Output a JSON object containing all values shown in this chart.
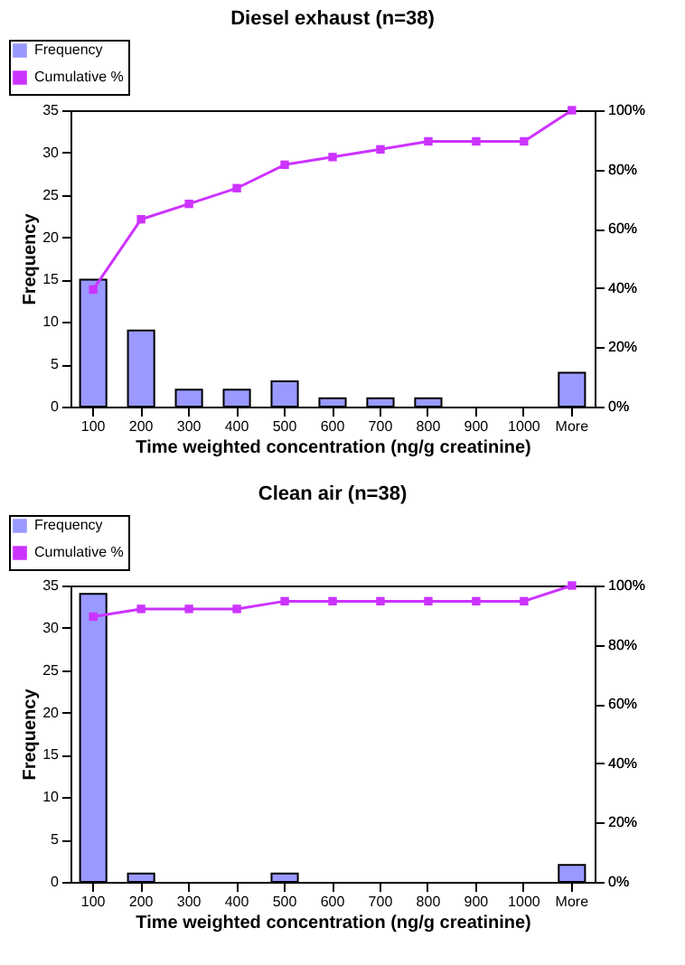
{
  "chart_data": [
    {
      "type": "bar",
      "title": "Diesel exhaust (n=38)",
      "xlabel": "Time weighted concentration (ng/g creatinine)",
      "ylabel": "Frequency",
      "categories": [
        "100",
        "200",
        "300",
        "400",
        "500",
        "600",
        "700",
        "800",
        "900",
        "1000",
        "More"
      ],
      "series": [
        {
          "name": "Frequency",
          "color": "#9999ff",
          "values": [
            15,
            9,
            2,
            2,
            3,
            1,
            1,
            1,
            0,
            0,
            4
          ]
        },
        {
          "name": "Cumulative %",
          "type": "line",
          "axis": "y2",
          "color": "#cc33ff",
          "values": [
            39.5,
            63.2,
            68.4,
            73.7,
            81.6,
            84.2,
            86.8,
            89.5,
            89.5,
            89.5,
            100
          ]
        }
      ],
      "ylim": [
        0,
        35
      ],
      "yticks": [
        0,
        5,
        10,
        15,
        20,
        25,
        30,
        35
      ],
      "y2lim": [
        0,
        100
      ],
      "y2ticks": [
        {
          "value": 0,
          "label": "0%"
        },
        {
          "value": 20,
          "label": "20%"
        },
        {
          "value": 40,
          "label": "40%"
        },
        {
          "value": 60,
          "label": "60%"
        },
        {
          "value": 80,
          "label": "80%"
        },
        {
          "value": 100,
          "label": "100%"
        }
      ],
      "legend": "top left",
      "marker": "square"
    },
    {
      "type": "bar",
      "title": "Clean air (n=38)",
      "xlabel": "Time weighted concentration (ng/g creatinine)",
      "ylabel": "Frequency",
      "categories": [
        "100",
        "200",
        "300",
        "400",
        "500",
        "600",
        "700",
        "800",
        "900",
        "1000",
        "More"
      ],
      "series": [
        {
          "name": "Frequency",
          "color": "#9999ff",
          "values": [
            34,
            1,
            0,
            0,
            1,
            0,
            0,
            0,
            0,
            0,
            2
          ]
        },
        {
          "name": "Cumulative %",
          "type": "line",
          "axis": "y2",
          "color": "#cc33ff",
          "values": [
            89.5,
            92.1,
            92.1,
            92.1,
            94.7,
            94.7,
            94.7,
            94.7,
            94.7,
            94.7,
            100
          ]
        }
      ],
      "ylim": [
        0,
        35
      ],
      "yticks": [
        0,
        5,
        10,
        15,
        20,
        25,
        30,
        35
      ],
      "y2lim": [
        0,
        100
      ],
      "y2ticks": [
        {
          "value": 0,
          "label": "0%"
        },
        {
          "value": 20,
          "label": "20%"
        },
        {
          "value": 40,
          "label": "40%"
        },
        {
          "value": 60,
          "label": "60%"
        },
        {
          "value": 80,
          "label": "80%"
        },
        {
          "value": 100,
          "label": "100%"
        }
      ],
      "legend": "top left",
      "marker": "square"
    }
  ]
}
